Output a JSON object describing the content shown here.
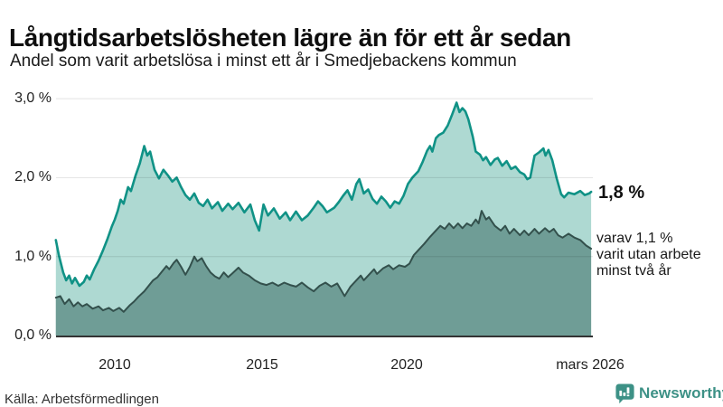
{
  "header": {
    "title": "Långtidsarbetslösheten lägre än för ett år sedan",
    "subtitle": "Andel som varit arbetslösa i minst ett år i Smedjebackens kommun"
  },
  "chart_data": {
    "type": "area",
    "title": "Långtidsarbetslösheten lägre än för ett år sedan",
    "subtitle": "Andel som varit arbetslösa i minst ett år i Smedjebackens kommun",
    "unit": "%",
    "grid": "horizontal",
    "x_range": [
      2008.0,
      2026.17
    ],
    "y_range": [
      0,
      3.0
    ],
    "x_axis": {
      "ticks": [
        {
          "label": "2010",
          "year": 2010
        },
        {
          "label": "2015",
          "year": 2015
        },
        {
          "label": "2020",
          "year": 2020
        },
        {
          "label": "mars 2026",
          "year": 2026.17
        }
      ]
    },
    "y_axis": {
      "ticks": [
        {
          "label": "3,0 %",
          "value": 3.0
        },
        {
          "label": "2,0 %",
          "value": 2.0
        },
        {
          "label": "1,0 %",
          "value": 1.0
        },
        {
          "label": "0,0 %",
          "value": 0.0
        }
      ]
    },
    "series": [
      {
        "name": "Andel arbetslösa minst ett år",
        "color": "#109286",
        "fill": "#aed9d2",
        "stroke_width": 2.6,
        "end_value": 1.8,
        "points": [
          [
            2008.0,
            1.21
          ],
          [
            2008.1,
            1.02
          ],
          [
            2008.25,
            0.8
          ],
          [
            2008.35,
            0.7
          ],
          [
            2008.45,
            0.76
          ],
          [
            2008.55,
            0.66
          ],
          [
            2008.65,
            0.73
          ],
          [
            2008.8,
            0.63
          ],
          [
            2008.95,
            0.68
          ],
          [
            2009.05,
            0.76
          ],
          [
            2009.15,
            0.71
          ],
          [
            2009.3,
            0.84
          ],
          [
            2009.45,
            0.95
          ],
          [
            2009.6,
            1.08
          ],
          [
            2009.75,
            1.22
          ],
          [
            2009.9,
            1.38
          ],
          [
            2010.0,
            1.47
          ],
          [
            2010.1,
            1.58
          ],
          [
            2010.2,
            1.72
          ],
          [
            2010.3,
            1.67
          ],
          [
            2010.45,
            1.88
          ],
          [
            2010.55,
            1.83
          ],
          [
            2010.7,
            2.02
          ],
          [
            2010.85,
            2.18
          ],
          [
            2011.0,
            2.4
          ],
          [
            2011.1,
            2.28
          ],
          [
            2011.2,
            2.33
          ],
          [
            2011.35,
            2.1
          ],
          [
            2011.5,
            1.99
          ],
          [
            2011.65,
            2.1
          ],
          [
            2011.8,
            2.03
          ],
          [
            2011.95,
            1.95
          ],
          [
            2012.1,
            2.0
          ],
          [
            2012.25,
            1.88
          ],
          [
            2012.4,
            1.78
          ],
          [
            2012.55,
            1.72
          ],
          [
            2012.7,
            1.8
          ],
          [
            2012.85,
            1.68
          ],
          [
            2013.0,
            1.64
          ],
          [
            2013.15,
            1.72
          ],
          [
            2013.3,
            1.61
          ],
          [
            2013.5,
            1.69
          ],
          [
            2013.65,
            1.58
          ],
          [
            2013.85,
            1.67
          ],
          [
            2014.0,
            1.6
          ],
          [
            2014.2,
            1.68
          ],
          [
            2014.4,
            1.56
          ],
          [
            2014.6,
            1.66
          ],
          [
            2014.75,
            1.46
          ],
          [
            2014.9,
            1.33
          ],
          [
            2015.05,
            1.66
          ],
          [
            2015.2,
            1.52
          ],
          [
            2015.4,
            1.61
          ],
          [
            2015.6,
            1.48
          ],
          [
            2015.8,
            1.56
          ],
          [
            2015.95,
            1.46
          ],
          [
            2016.15,
            1.57
          ],
          [
            2016.35,
            1.46
          ],
          [
            2016.55,
            1.52
          ],
          [
            2016.75,
            1.62
          ],
          [
            2016.9,
            1.7
          ],
          [
            2017.05,
            1.64
          ],
          [
            2017.2,
            1.56
          ],
          [
            2017.45,
            1.62
          ],
          [
            2017.6,
            1.69
          ],
          [
            2017.75,
            1.77
          ],
          [
            2017.9,
            1.84
          ],
          [
            2018.05,
            1.72
          ],
          [
            2018.2,
            1.92
          ],
          [
            2018.3,
            1.98
          ],
          [
            2018.45,
            1.8
          ],
          [
            2018.6,
            1.85
          ],
          [
            2018.75,
            1.73
          ],
          [
            2018.9,
            1.67
          ],
          [
            2019.05,
            1.76
          ],
          [
            2019.2,
            1.7
          ],
          [
            2019.35,
            1.62
          ],
          [
            2019.5,
            1.7
          ],
          [
            2019.65,
            1.67
          ],
          [
            2019.8,
            1.77
          ],
          [
            2019.95,
            1.92
          ],
          [
            2020.1,
            2.0
          ],
          [
            2020.3,
            2.08
          ],
          [
            2020.45,
            2.2
          ],
          [
            2020.6,
            2.34
          ],
          [
            2020.7,
            2.4
          ],
          [
            2020.78,
            2.33
          ],
          [
            2020.9,
            2.5
          ],
          [
            2021.0,
            2.54
          ],
          [
            2021.15,
            2.57
          ],
          [
            2021.3,
            2.66
          ],
          [
            2021.45,
            2.8
          ],
          [
            2021.6,
            2.95
          ],
          [
            2021.7,
            2.83
          ],
          [
            2021.8,
            2.88
          ],
          [
            2021.9,
            2.84
          ],
          [
            2022.0,
            2.74
          ],
          [
            2022.15,
            2.52
          ],
          [
            2022.25,
            2.33
          ],
          [
            2022.4,
            2.29
          ],
          [
            2022.5,
            2.22
          ],
          [
            2022.6,
            2.26
          ],
          [
            2022.75,
            2.16
          ],
          [
            2022.9,
            2.23
          ],
          [
            2023.0,
            2.25
          ],
          [
            2023.15,
            2.15
          ],
          [
            2023.3,
            2.21
          ],
          [
            2023.45,
            2.11
          ],
          [
            2023.6,
            2.14
          ],
          [
            2023.75,
            2.07
          ],
          [
            2023.9,
            2.04
          ],
          [
            2024.0,
            1.98
          ],
          [
            2024.1,
            2.0
          ],
          [
            2024.25,
            2.28
          ],
          [
            2024.4,
            2.32
          ],
          [
            2024.55,
            2.37
          ],
          [
            2024.62,
            2.28
          ],
          [
            2024.72,
            2.35
          ],
          [
            2024.85,
            2.22
          ],
          [
            2025.0,
            1.99
          ],
          [
            2025.15,
            1.79
          ],
          [
            2025.25,
            1.75
          ],
          [
            2025.4,
            1.81
          ],
          [
            2025.6,
            1.79
          ],
          [
            2025.8,
            1.83
          ],
          [
            2025.95,
            1.78
          ],
          [
            2026.1,
            1.8
          ],
          [
            2026.17,
            1.82
          ]
        ]
      },
      {
        "name": "Andel arbetslösa minst två år",
        "color": "#33504c",
        "fill": "#6f9d96",
        "stroke_width": 2,
        "end_value": 1.1,
        "points": [
          [
            2008.0,
            0.48
          ],
          [
            2008.15,
            0.5
          ],
          [
            2008.3,
            0.4
          ],
          [
            2008.45,
            0.46
          ],
          [
            2008.6,
            0.37
          ],
          [
            2008.75,
            0.42
          ],
          [
            2008.9,
            0.37
          ],
          [
            2009.05,
            0.4
          ],
          [
            2009.25,
            0.34
          ],
          [
            2009.45,
            0.37
          ],
          [
            2009.6,
            0.32
          ],
          [
            2009.8,
            0.35
          ],
          [
            2009.95,
            0.31
          ],
          [
            2010.15,
            0.35
          ],
          [
            2010.3,
            0.3
          ],
          [
            2010.5,
            0.38
          ],
          [
            2010.65,
            0.43
          ],
          [
            2010.8,
            0.49
          ],
          [
            2011.0,
            0.56
          ],
          [
            2011.15,
            0.63
          ],
          [
            2011.3,
            0.7
          ],
          [
            2011.45,
            0.74
          ],
          [
            2011.6,
            0.81
          ],
          [
            2011.75,
            0.88
          ],
          [
            2011.85,
            0.84
          ],
          [
            2012.0,
            0.92
          ],
          [
            2012.1,
            0.96
          ],
          [
            2012.25,
            0.87
          ],
          [
            2012.4,
            0.77
          ],
          [
            2012.55,
            0.87
          ],
          [
            2012.7,
            1.0
          ],
          [
            2012.8,
            0.94
          ],
          [
            2012.95,
            0.98
          ],
          [
            2013.1,
            0.88
          ],
          [
            2013.25,
            0.8
          ],
          [
            2013.4,
            0.75
          ],
          [
            2013.55,
            0.72
          ],
          [
            2013.7,
            0.8
          ],
          [
            2013.85,
            0.74
          ],
          [
            2014.0,
            0.79
          ],
          [
            2014.2,
            0.86
          ],
          [
            2014.35,
            0.8
          ],
          [
            2014.55,
            0.76
          ],
          [
            2014.75,
            0.7
          ],
          [
            2014.95,
            0.66
          ],
          [
            2015.15,
            0.64
          ],
          [
            2015.35,
            0.67
          ],
          [
            2015.55,
            0.63
          ],
          [
            2015.75,
            0.67
          ],
          [
            2015.95,
            0.64
          ],
          [
            2016.15,
            0.62
          ],
          [
            2016.35,
            0.67
          ],
          [
            2016.55,
            0.61
          ],
          [
            2016.75,
            0.56
          ],
          [
            2016.95,
            0.63
          ],
          [
            2017.15,
            0.67
          ],
          [
            2017.35,
            0.62
          ],
          [
            2017.55,
            0.66
          ],
          [
            2017.8,
            0.5
          ],
          [
            2018.0,
            0.62
          ],
          [
            2018.2,
            0.7
          ],
          [
            2018.35,
            0.76
          ],
          [
            2018.45,
            0.7
          ],
          [
            2018.65,
            0.78
          ],
          [
            2018.8,
            0.84
          ],
          [
            2018.9,
            0.78
          ],
          [
            2019.1,
            0.85
          ],
          [
            2019.3,
            0.89
          ],
          [
            2019.45,
            0.84
          ],
          [
            2019.65,
            0.89
          ],
          [
            2019.85,
            0.87
          ],
          [
            2020.0,
            0.91
          ],
          [
            2020.15,
            1.02
          ],
          [
            2020.3,
            1.08
          ],
          [
            2020.5,
            1.16
          ],
          [
            2020.7,
            1.25
          ],
          [
            2020.9,
            1.33
          ],
          [
            2021.05,
            1.39
          ],
          [
            2021.2,
            1.35
          ],
          [
            2021.35,
            1.42
          ],
          [
            2021.5,
            1.36
          ],
          [
            2021.65,
            1.42
          ],
          [
            2021.8,
            1.36
          ],
          [
            2021.95,
            1.42
          ],
          [
            2022.1,
            1.39
          ],
          [
            2022.25,
            1.47
          ],
          [
            2022.35,
            1.42
          ],
          [
            2022.45,
            1.58
          ],
          [
            2022.6,
            1.47
          ],
          [
            2022.7,
            1.5
          ],
          [
            2022.9,
            1.39
          ],
          [
            2023.1,
            1.33
          ],
          [
            2023.25,
            1.39
          ],
          [
            2023.4,
            1.29
          ],
          [
            2023.55,
            1.35
          ],
          [
            2023.75,
            1.27
          ],
          [
            2023.9,
            1.33
          ],
          [
            2024.05,
            1.27
          ],
          [
            2024.25,
            1.35
          ],
          [
            2024.4,
            1.29
          ],
          [
            2024.6,
            1.36
          ],
          [
            2024.75,
            1.31
          ],
          [
            2024.9,
            1.35
          ],
          [
            2025.05,
            1.27
          ],
          [
            2025.2,
            1.24
          ],
          [
            2025.4,
            1.29
          ],
          [
            2025.6,
            1.24
          ],
          [
            2025.8,
            1.21
          ],
          [
            2026.0,
            1.14
          ],
          [
            2026.17,
            1.1
          ]
        ]
      }
    ],
    "annotations": {
      "end_label": "1,8 %",
      "sub_line1": "varav 1,1 %",
      "sub_line2": "varit utan arbete",
      "sub_line3": "minst två år"
    }
  },
  "footer": {
    "source": "Källa: Arbetsförmedlingen",
    "brand": "Newsworthy"
  },
  "colors": {
    "line_primary": "#109286",
    "fill_primary": "#aed9d2",
    "line_secondary": "#33504c",
    "fill_secondary": "#6f9d96",
    "gridline": "#e2e2e2",
    "axis_line": "#333333",
    "brand": "#3d9186"
  }
}
